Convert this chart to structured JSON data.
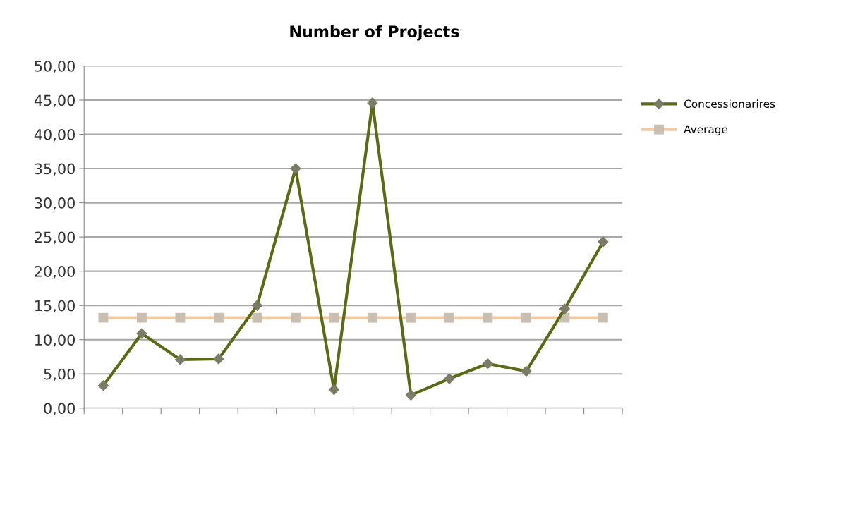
{
  "chart_data": {
    "type": "line",
    "title": "Number of Projects",
    "categories": [
      null,
      null,
      null,
      null,
      null,
      null,
      null,
      null,
      null,
      null,
      null,
      null,
      null,
      null
    ],
    "series": [
      {
        "name": "Concessionarires",
        "color": "#5b6a14",
        "marker": "diamond",
        "values": [
          3.3,
          10.9,
          7.1,
          7.2,
          15.0,
          35.0,
          2.7,
          44.6,
          1.9,
          4.3,
          6.5,
          5.4,
          14.5,
          24.3
        ]
      },
      {
        "name": "Average",
        "color": "#f3c9a2",
        "marker": "square",
        "values": [
          13.2,
          13.2,
          13.2,
          13.2,
          13.2,
          13.2,
          13.2,
          13.2,
          13.2,
          13.2,
          13.2,
          13.2,
          13.2,
          13.2
        ]
      }
    ],
    "ylim": [
      0,
      50
    ],
    "yticks": [
      {
        "value": 0,
        "label": "0,00"
      },
      {
        "value": 5,
        "label": "5,00"
      },
      {
        "value": 10,
        "label": "10,00"
      },
      {
        "value": 15,
        "label": "15,00"
      },
      {
        "value": 20,
        "label": "20,00"
      },
      {
        "value": 25,
        "label": "25,00"
      },
      {
        "value": 30,
        "label": "30,00"
      },
      {
        "value": 35,
        "label": "35,00"
      },
      {
        "value": 40,
        "label": "40,00"
      },
      {
        "value": 45,
        "label": "45,00"
      },
      {
        "value": 50,
        "label": "50,00"
      }
    ],
    "grid": "y",
    "legend": "right",
    "line_style": "solid"
  }
}
